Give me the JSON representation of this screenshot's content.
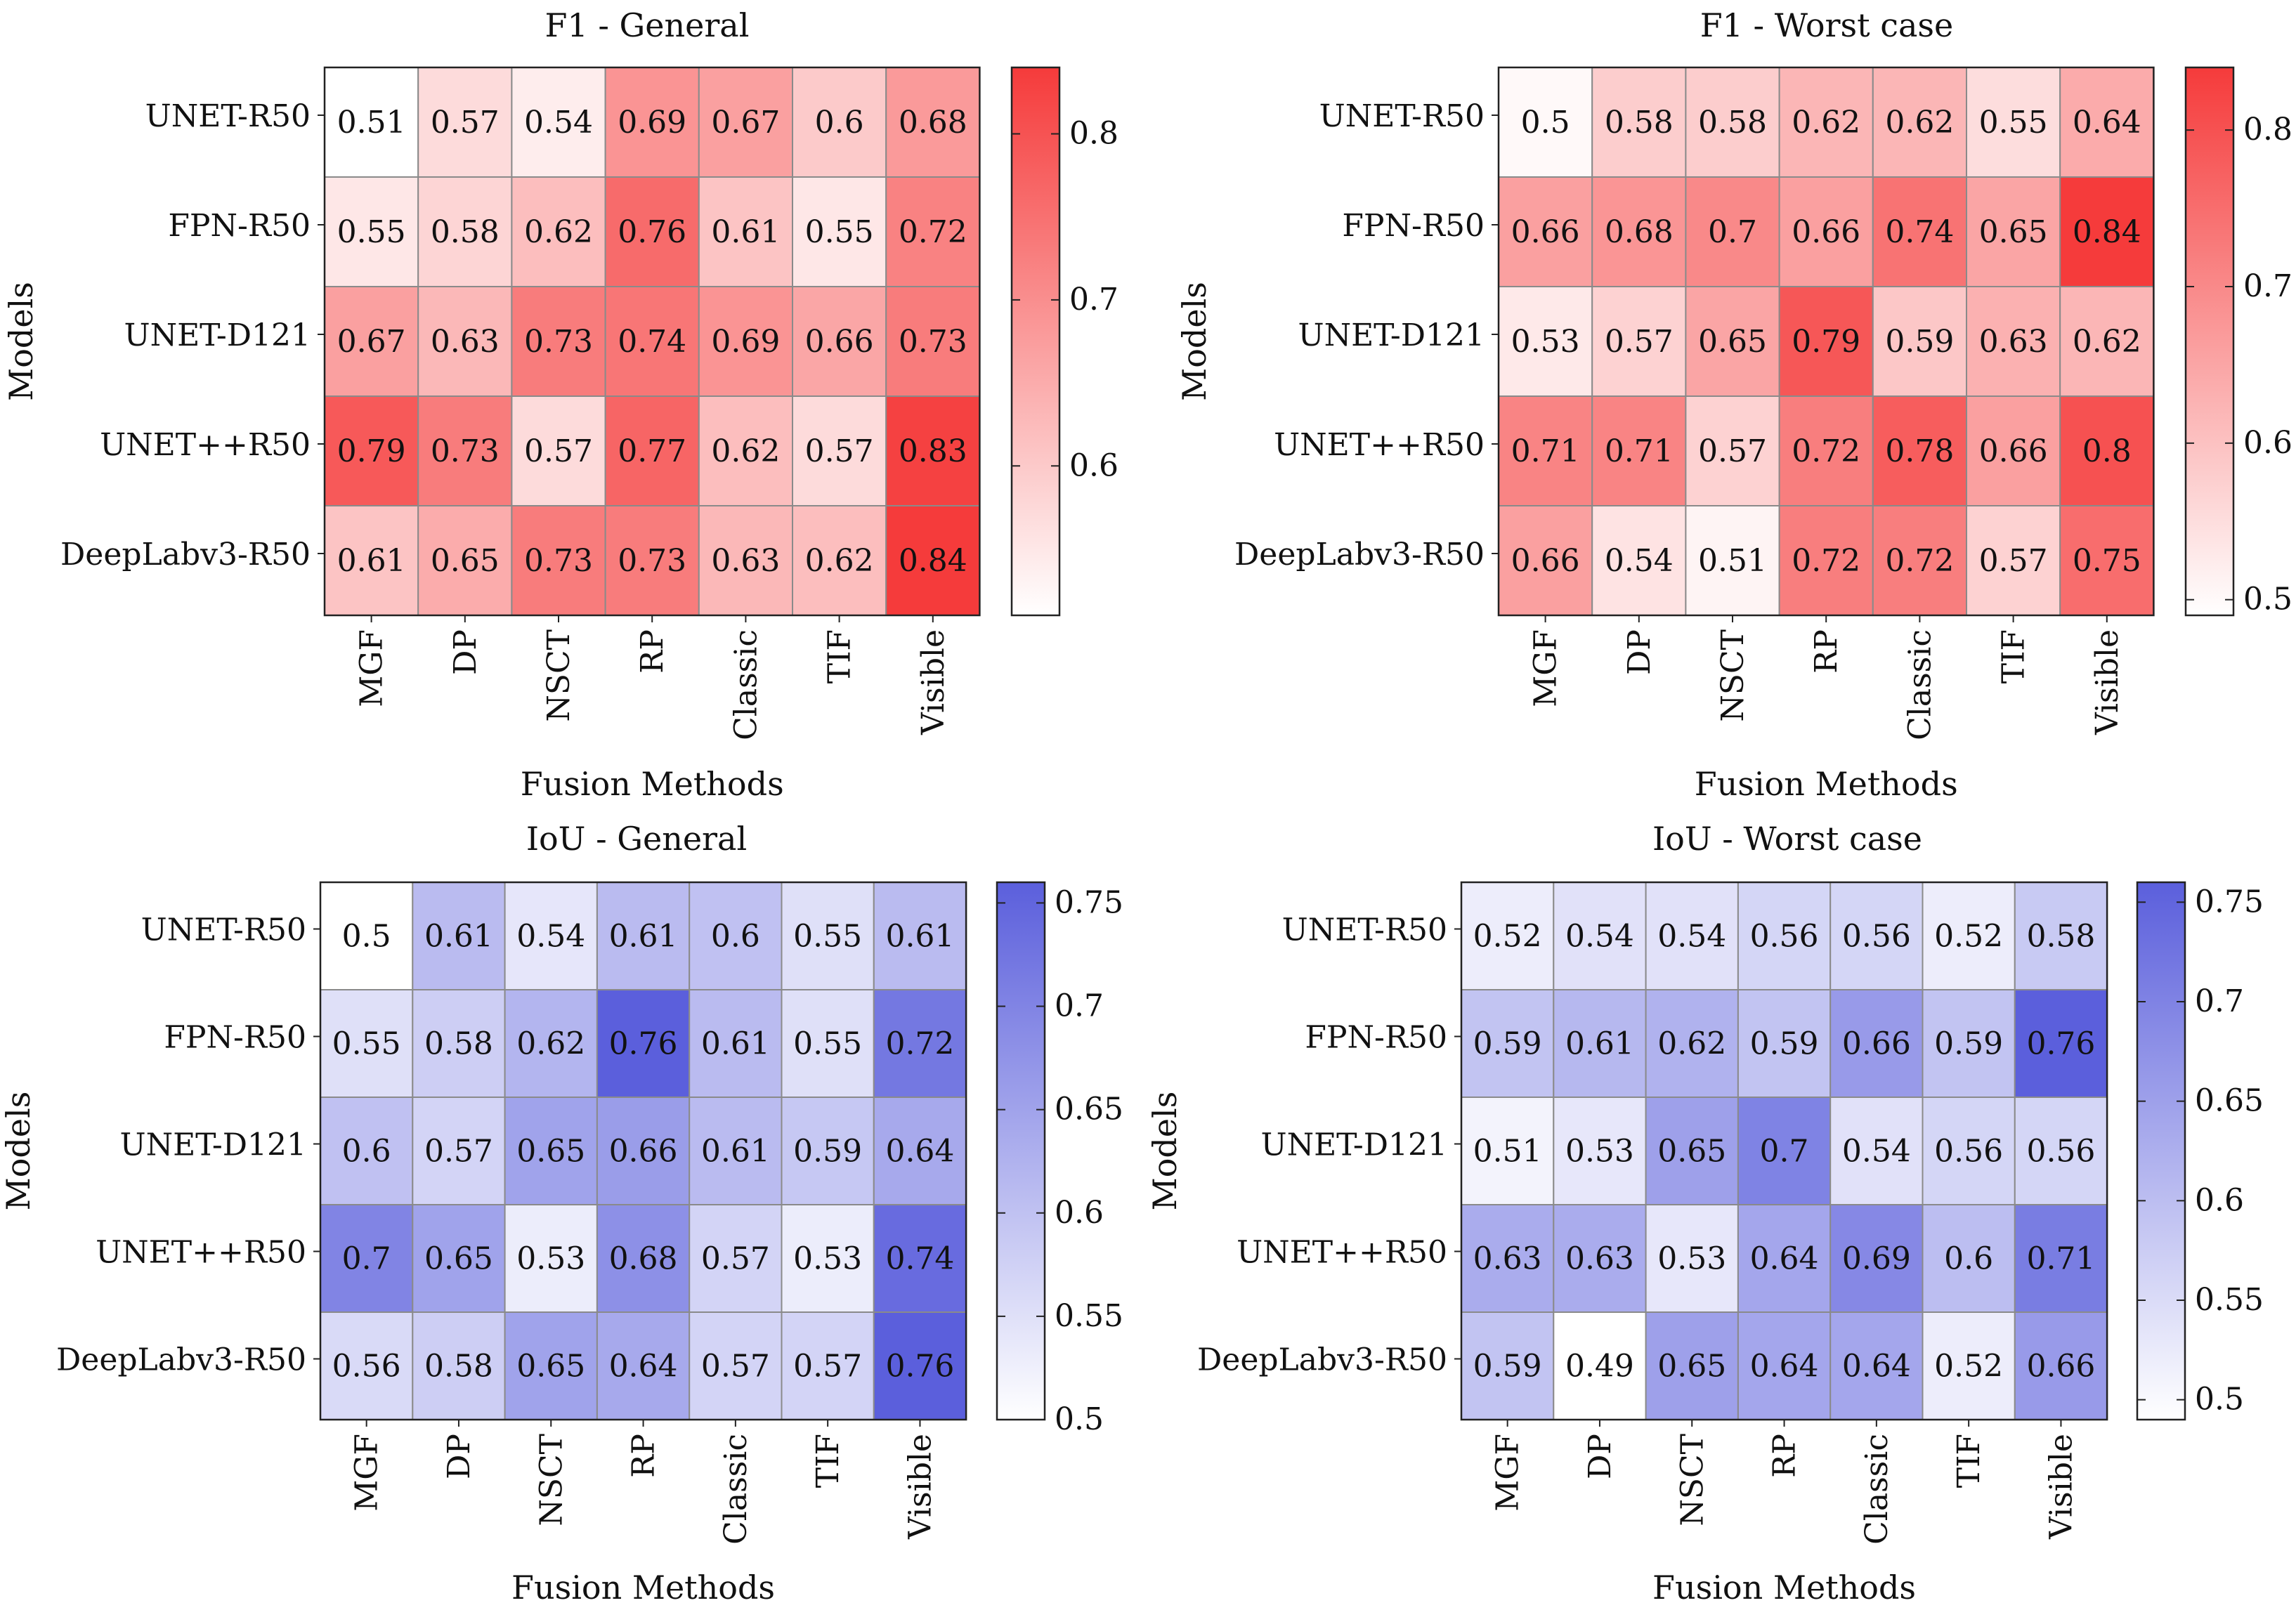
{
  "chart_data": [
    {
      "type": "heatmap",
      "title": "F1 - General",
      "xlabel": "Fusion Methods",
      "ylabel": "Models",
      "colormap": {
        "low": "#ffffff",
        "high": "#f53b3b"
      },
      "color_range": [
        0.51,
        0.84
      ],
      "colorbar_ticks": [
        "0.6",
        "0.7",
        "0.8"
      ],
      "categories_x": [
        "MGF",
        "DP",
        "NSCT",
        "RP",
        "Classic",
        "TIF",
        "Visible"
      ],
      "categories_y": [
        "UNET-R50",
        "FPN-R50",
        "UNET-D121",
        "UNET++R50",
        "DeepLabv3-R50"
      ],
      "values": [
        [
          0.51,
          0.57,
          0.54,
          0.69,
          0.67,
          0.6,
          0.68
        ],
        [
          0.55,
          0.58,
          0.62,
          0.76,
          0.61,
          0.55,
          0.72
        ],
        [
          0.67,
          0.63,
          0.73,
          0.74,
          0.69,
          0.66,
          0.73
        ],
        [
          0.79,
          0.73,
          0.57,
          0.77,
          0.62,
          0.57,
          0.83
        ],
        [
          0.61,
          0.65,
          0.73,
          0.73,
          0.63,
          0.62,
          0.84
        ]
      ],
      "labels": [
        [
          "0.51",
          "0.57",
          "0.54",
          "0.69",
          "0.67",
          "0.6",
          "0.68"
        ],
        [
          "0.55",
          "0.58",
          "0.62",
          "0.76",
          "0.61",
          "0.55",
          "0.72"
        ],
        [
          "0.67",
          "0.63",
          "0.73",
          "0.74",
          "0.69",
          "0.66",
          "0.73"
        ],
        [
          "0.79",
          "0.73",
          "0.57",
          "0.77",
          "0.62",
          "0.57",
          "0.83"
        ],
        [
          "0.61",
          "0.65",
          "0.73",
          "0.73",
          "0.63",
          "0.62",
          "0.84"
        ]
      ]
    },
    {
      "type": "heatmap",
      "title": "F1 - Worst case",
      "xlabel": "Fusion Methods",
      "ylabel": "Models",
      "colormap": {
        "low": "#ffffff",
        "high": "#f53b3b"
      },
      "color_range": [
        0.49,
        0.84
      ],
      "colorbar_ticks": [
        "0.5",
        "0.6",
        "0.7",
        "0.8"
      ],
      "categories_x": [
        "MGF",
        "DP",
        "NSCT",
        "RP",
        "Classic",
        "TIF",
        "Visible"
      ],
      "categories_y": [
        "UNET-R50",
        "FPN-R50",
        "UNET-D121",
        "UNET++R50",
        "DeepLabv3-R50"
      ],
      "values": [
        [
          0.5,
          0.58,
          0.58,
          0.62,
          0.62,
          0.55,
          0.64
        ],
        [
          0.66,
          0.68,
          0.7,
          0.66,
          0.74,
          0.65,
          0.84
        ],
        [
          0.53,
          0.57,
          0.65,
          0.79,
          0.59,
          0.63,
          0.62
        ],
        [
          0.71,
          0.71,
          0.57,
          0.72,
          0.78,
          0.66,
          0.8
        ],
        [
          0.66,
          0.54,
          0.51,
          0.72,
          0.72,
          0.57,
          0.75
        ]
      ],
      "labels": [
        [
          "0.5",
          "0.58",
          "0.58",
          "0.62",
          "0.62",
          "0.55",
          "0.64"
        ],
        [
          "0.66",
          "0.68",
          "0.7",
          "0.66",
          "0.74",
          "0.65",
          "0.84"
        ],
        [
          "0.53",
          "0.57",
          "0.65",
          "0.79",
          "0.59",
          "0.63",
          "0.62"
        ],
        [
          "0.71",
          "0.71",
          "0.57",
          "0.72",
          "0.78",
          "0.66",
          "0.8"
        ],
        [
          "0.66",
          "0.54",
          "0.51",
          "0.72",
          "0.72",
          "0.57",
          "0.75"
        ]
      ]
    },
    {
      "type": "heatmap",
      "title": "IoU - General",
      "xlabel": "Fusion Methods",
      "ylabel": "Models",
      "colormap": {
        "low": "#ffffff",
        "high": "#5b5fdc"
      },
      "color_range": [
        0.5,
        0.76
      ],
      "colorbar_ticks": [
        "0.5",
        "0.55",
        "0.6",
        "0.65",
        "0.7",
        "0.75"
      ],
      "categories_x": [
        "MGF",
        "DP",
        "NSCT",
        "RP",
        "Classic",
        "TIF",
        "Visible"
      ],
      "categories_y": [
        "UNET-R50",
        "FPN-R50",
        "UNET-D121",
        "UNET++R50",
        "DeepLabv3-R50"
      ],
      "values": [
        [
          0.5,
          0.61,
          0.54,
          0.61,
          0.6,
          0.55,
          0.61
        ],
        [
          0.55,
          0.58,
          0.62,
          0.76,
          0.61,
          0.55,
          0.72
        ],
        [
          0.6,
          0.57,
          0.65,
          0.66,
          0.61,
          0.59,
          0.64
        ],
        [
          0.7,
          0.65,
          0.53,
          0.68,
          0.57,
          0.53,
          0.74
        ],
        [
          0.56,
          0.58,
          0.65,
          0.64,
          0.57,
          0.57,
          0.76
        ]
      ],
      "labels": [
        [
          "0.5",
          "0.61",
          "0.54",
          "0.61",
          "0.6",
          "0.55",
          "0.61"
        ],
        [
          "0.55",
          "0.58",
          "0.62",
          "0.76",
          "0.61",
          "0.55",
          "0.72"
        ],
        [
          "0.6",
          "0.57",
          "0.65",
          "0.66",
          "0.61",
          "0.59",
          "0.64"
        ],
        [
          "0.7",
          "0.65",
          "0.53",
          "0.68",
          "0.57",
          "0.53",
          "0.74"
        ],
        [
          "0.56",
          "0.58",
          "0.65",
          "0.64",
          "0.57",
          "0.57",
          "0.76"
        ]
      ]
    },
    {
      "type": "heatmap",
      "title": "IoU - Worst case",
      "xlabel": "Fusion Methods",
      "ylabel": "Models",
      "colormap": {
        "low": "#ffffff",
        "high": "#5b5fdc"
      },
      "color_range": [
        0.49,
        0.76
      ],
      "colorbar_ticks": [
        "0.5",
        "0.55",
        "0.6",
        "0.65",
        "0.7",
        "0.75"
      ],
      "categories_x": [
        "MGF",
        "DP",
        "NSCT",
        "RP",
        "Classic",
        "TIF",
        "Visible"
      ],
      "categories_y": [
        "UNET-R50",
        "FPN-R50",
        "UNET-D121",
        "UNET++R50",
        "DeepLabv3-R50"
      ],
      "values": [
        [
          0.52,
          0.54,
          0.54,
          0.56,
          0.56,
          0.52,
          0.58
        ],
        [
          0.59,
          0.61,
          0.62,
          0.59,
          0.66,
          0.59,
          0.76
        ],
        [
          0.51,
          0.53,
          0.65,
          0.7,
          0.54,
          0.56,
          0.56
        ],
        [
          0.63,
          0.63,
          0.53,
          0.64,
          0.69,
          0.6,
          0.71
        ],
        [
          0.59,
          0.49,
          0.65,
          0.64,
          0.64,
          0.52,
          0.66
        ]
      ],
      "labels": [
        [
          "0.52",
          "0.54",
          "0.54",
          "0.56",
          "0.56",
          "0.52",
          "0.58"
        ],
        [
          "0.59",
          "0.61",
          "0.62",
          "0.59",
          "0.66",
          "0.59",
          "0.76"
        ],
        [
          "0.51",
          "0.53",
          "0.65",
          "0.7",
          "0.54",
          "0.56",
          "0.56"
        ],
        [
          "0.63",
          "0.63",
          "0.53",
          "0.64",
          "0.69",
          "0.6",
          "0.71"
        ],
        [
          "0.59",
          "0.49",
          "0.65",
          "0.64",
          "0.64",
          "0.52",
          "0.66"
        ]
      ]
    }
  ]
}
